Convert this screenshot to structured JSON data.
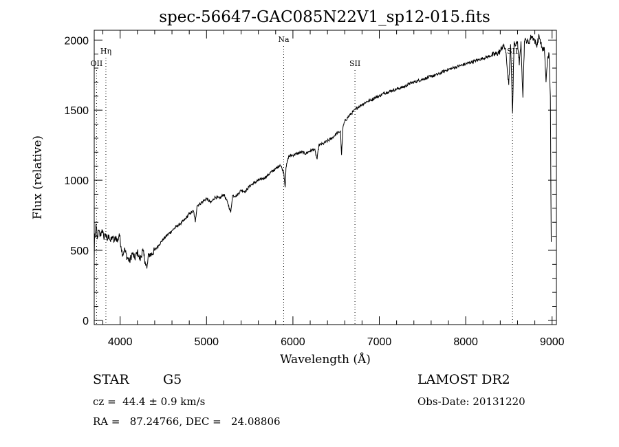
{
  "chart_data": {
    "type": "line",
    "title": "spec-56647-GAC085N22V1_sp12-015.fits",
    "xlabel": "Wavelength (Å)",
    "ylabel": "Flux (relative)",
    "xlim": [
      3700,
      9050
    ],
    "ylim": [
      -30,
      2070
    ],
    "xticks": [
      4000,
      5000,
      6000,
      7000,
      8000,
      9000
    ],
    "yticks": [
      0,
      500,
      1000,
      1500,
      2000
    ],
    "grid": false,
    "series": [
      {
        "x": [
          3700,
          3705,
          3710,
          3720,
          3735,
          3750,
          3770,
          3790,
          3810,
          3830,
          3850,
          3870,
          3890,
          3910,
          3930,
          3950,
          3970,
          3990,
          4010,
          4030,
          4050,
          4080,
          4110,
          4140,
          4170,
          4200,
          4230,
          4260,
          4290,
          4310,
          4330,
          4360,
          4400,
          4450,
          4500,
          4550,
          4600,
          4650,
          4700,
          4750,
          4800,
          4850,
          4870,
          4890,
          4920,
          4960,
          5000,
          5050,
          5100,
          5150,
          5200,
          5250,
          5280,
          5300,
          5350,
          5400,
          5450,
          5500,
          5550,
          5600,
          5650,
          5700,
          5750,
          5800,
          5850,
          5870,
          5895,
          5910,
          5920,
          5950,
          6000,
          6050,
          6100,
          6150,
          6200,
          6250,
          6280,
          6300,
          6350,
          6400,
          6450,
          6500,
          6550,
          6563,
          6580,
          6600,
          6650,
          6700,
          6750,
          6800,
          6850,
          6900,
          6950,
          7000,
          7050,
          7100,
          7150,
          7200,
          7250,
          7300,
          7350,
          7400,
          7450,
          7500,
          7550,
          7600,
          7650,
          7700,
          7750,
          7800,
          7850,
          7900,
          7950,
          8000,
          8050,
          8100,
          8150,
          8200,
          8250,
          8300,
          8350,
          8400,
          8430,
          8460,
          8498,
          8520,
          8542,
          8560,
          8580,
          8600,
          8620,
          8640,
          8662,
          8680,
          8700,
          8730,
          8760,
          8790,
          8820,
          8850,
          8870,
          8890,
          8910,
          8930,
          8950,
          8965,
          8980,
          8990
        ],
        "y": [
          450,
          620,
          590,
          690,
          580,
          640,
          600,
          650,
          590,
          620,
          570,
          610,
          560,
          600,
          560,
          600,
          560,
          620,
          530,
          470,
          510,
          450,
          420,
          480,
          440,
          490,
          430,
          500,
          420,
          370,
          470,
          470,
          500,
          540,
          580,
          610,
          640,
          670,
          690,
          720,
          760,
          780,
          700,
          820,
          830,
          850,
          870,
          840,
          880,
          870,
          900,
          830,
          770,
          890,
          890,
          930,
          920,
          960,
          980,
          1000,
          1010,
          1030,
          1060,
          1080,
          1110,
          1090,
          1050,
          950,
          1090,
          1170,
          1180,
          1190,
          1200,
          1190,
          1210,
          1220,
          1150,
          1250,
          1260,
          1280,
          1300,
          1330,
          1350,
          1180,
          1380,
          1420,
          1460,
          1490,
          1520,
          1540,
          1560,
          1570,
          1590,
          1600,
          1620,
          1630,
          1640,
          1650,
          1660,
          1670,
          1690,
          1700,
          1710,
          1720,
          1730,
          1740,
          1750,
          1760,
          1780,
          1790,
          1800,
          1810,
          1820,
          1830,
          1840,
          1850,
          1860,
          1870,
          1880,
          1890,
          1900,
          1920,
          1960,
          1940,
          1680,
          1970,
          1480,
          1990,
          1960,
          1990,
          1820,
          1990,
          1590,
          1990,
          2000,
          1980,
          2030,
          2010,
          1960,
          2030,
          1980,
          1920,
          1950,
          1700,
          1880,
          1900,
          1600,
          560
        ]
      }
    ],
    "annotations": [
      {
        "label": "OII",
        "x": 3727,
        "row": 3
      },
      {
        "label": "Hη",
        "x": 3835,
        "row": 2
      },
      {
        "label": "Na",
        "x": 5893,
        "row": 1
      },
      {
        "label": "SII",
        "x": 6718,
        "row": 3
      },
      {
        "label": "SII",
        "x": 8542,
        "row": 2
      }
    ]
  },
  "info": {
    "class": "STAR",
    "subclass": "G5",
    "redshift": "cz =  44.4 ± 0.9 km/s",
    "coords": "RA =   87.24766, DEC =   24.08806",
    "survey": "LAMOST DR2",
    "obs_date": "Obs-Date: 20131220"
  }
}
